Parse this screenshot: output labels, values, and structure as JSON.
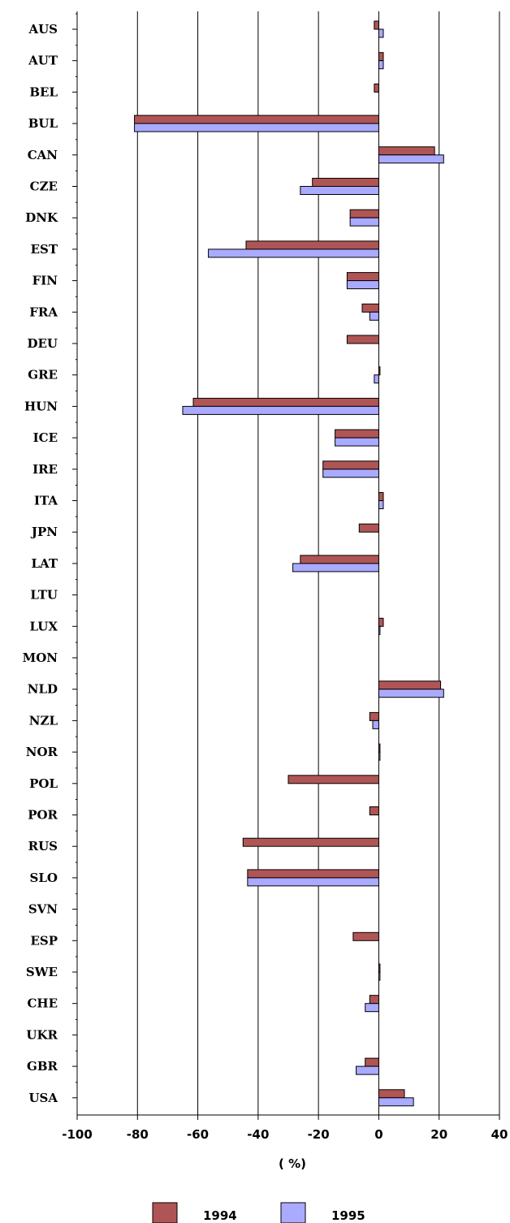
{
  "chart_data": {
    "type": "bar",
    "orientation": "horizontal",
    "title": "",
    "xlabel": "( %)",
    "ylabel": "",
    "xlim": [
      -100,
      40
    ],
    "xticks": [
      "-100",
      "-80",
      "-60",
      "-40",
      "-20",
      "0",
      "20",
      "40"
    ],
    "grid": "vertical",
    "legend_position": "bottom",
    "categories": [
      "AUS",
      "AUT",
      "BEL",
      "BUL",
      "CAN",
      "CZE",
      "DNK",
      "EST",
      "FIN",
      "FRA",
      "DEU",
      "GRE",
      "HUN",
      "ICE",
      "IRE",
      "ITA",
      "JPN",
      "LAT",
      "LTU",
      "LUX",
      "MON",
      "NLD",
      "NZL",
      "NOR",
      "POL",
      "POR",
      "RUS",
      "SLO",
      "SVN",
      "ESP",
      "SWE",
      "CHE",
      "UKR",
      "GBR",
      "USA"
    ],
    "series": [
      {
        "name": "1994",
        "color": "#b05555",
        "values": [
          -1.5,
          1.5,
          -1.5,
          -81,
          18.5,
          -22,
          -9.5,
          -44,
          -10.5,
          -5.5,
          -10.5,
          0.3,
          -61.5,
          -14.5,
          -18.5,
          1.5,
          -6.5,
          -26,
          null,
          1.5,
          null,
          20.5,
          -3,
          0.3,
          -30,
          -3,
          -45,
          -43.5,
          null,
          -8.5,
          0.3,
          -3,
          null,
          -4.5,
          8.5
        ]
      },
      {
        "name": "1995",
        "color": "#aaaaff",
        "values": [
          1.5,
          1.5,
          null,
          -81,
          21.5,
          -26,
          -9.5,
          -56.5,
          -10.5,
          -3,
          null,
          -1.5,
          -65,
          -14.5,
          -18.5,
          1.5,
          null,
          -28.5,
          null,
          0.3,
          null,
          21.5,
          -2,
          0.3,
          null,
          null,
          null,
          -43.5,
          null,
          null,
          0.3,
          -4.5,
          null,
          -7.5,
          11.5
        ]
      }
    ]
  }
}
